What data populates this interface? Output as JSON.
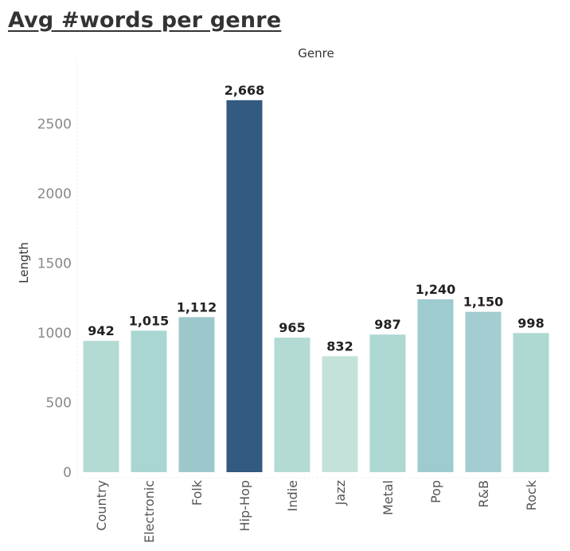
{
  "title": "Avg #words per genre",
  "chart_data": {
    "type": "bar",
    "title": "Avg #words per genre",
    "header": "Genre",
    "xlabel": "",
    "ylabel": "Length",
    "ylim": [
      0,
      2700
    ],
    "yticks": [
      0,
      500,
      1000,
      1500,
      2000,
      2500
    ],
    "grid": false,
    "categories": [
      "Country",
      "Electronic",
      "Folk",
      "Hip-Hop",
      "Indie",
      "Jazz",
      "Metal",
      "Pop",
      "R&B",
      "Rock"
    ],
    "values": [
      942,
      1015,
      1112,
      2668,
      965,
      832,
      987,
      1240,
      1150,
      998
    ],
    "value_labels": [
      "942",
      "1,015",
      "1,112",
      "2,668",
      "965",
      "832",
      "987",
      "1,240",
      "1,150",
      "998"
    ],
    "colors": [
      "#b3dbd3",
      "#a9d6d1",
      "#9dc8cb",
      "#335a80",
      "#b3dbd3",
      "#c4e2da",
      "#aed8d2",
      "#9ecbce",
      "#a3cdd0",
      "#aed8d2"
    ]
  }
}
